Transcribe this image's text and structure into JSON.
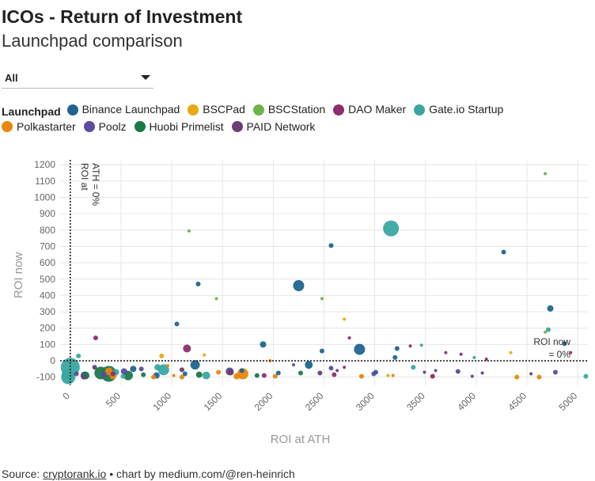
{
  "header": {
    "title": "ICOs - Return of Investment",
    "subtitle": "Launchpad comparison"
  },
  "filter": {
    "selected": "All"
  },
  "legend": {
    "title": "Launchpad",
    "items": [
      {
        "label": "Binance Launchpad",
        "color": "#1f6590"
      },
      {
        "label": "BSCPad",
        "color": "#e8a911"
      },
      {
        "label": "BSCStation",
        "color": "#6db34a"
      },
      {
        "label": "DAO Maker",
        "color": "#8e2d6c"
      },
      {
        "label": "Gate.io Startup",
        "color": "#3aa6a1"
      },
      {
        "label": "Polkastarter",
        "color": "#e8860e"
      },
      {
        "label": "Poolz",
        "color": "#5c4ba0"
      },
      {
        "label": "Huobi Primelist",
        "color": "#1a7a4a"
      },
      {
        "label": "PAID Network",
        "color": "#6b3d76"
      }
    ]
  },
  "footer": {
    "source_label": "Source:",
    "source_link": "cryptorank.io",
    "credit": "• chart by medium.com/@ren-heinrich"
  },
  "chart_data": {
    "type": "scatter",
    "title": "",
    "xlabel": "ROI at ATH",
    "ylabel": "ROI now",
    "xlim": [
      -100,
      5100
    ],
    "ylim": [
      -150,
      1230
    ],
    "xticks": [
      0,
      500,
      1000,
      1500,
      2000,
      2500,
      3000,
      3500,
      4000,
      4500,
      5000
    ],
    "yticks": [
      -100,
      0,
      100,
      200,
      300,
      400,
      500,
      600,
      700,
      800,
      900,
      1000,
      1100,
      1200
    ],
    "reference_lines": [
      {
        "axis": "x",
        "value": 0,
        "label": "ROI at ATH = 0%"
      },
      {
        "axis": "y",
        "value": 0,
        "label": "ROI now = 0%"
      }
    ],
    "series": [
      {
        "name": "Binance Launchpad",
        "color": "#1f6590",
        "points": [
          [
            2250,
            460,
            7
          ],
          [
            2570,
            705,
            3
          ],
          [
            4270,
            665,
            3
          ],
          [
            4730,
            320,
            4
          ],
          [
            2850,
            70,
            7
          ],
          [
            1260,
            470,
            3
          ],
          [
            1050,
            225,
            3
          ],
          [
            1900,
            100,
            4
          ],
          [
            4870,
            105,
            3
          ],
          [
            2350,
            -25,
            5
          ],
          [
            1230,
            -25,
            6
          ],
          [
            3220,
            75,
            3
          ],
          [
            3200,
            20,
            3
          ],
          [
            850,
            -90,
            4
          ],
          [
            1130,
            -80,
            3
          ],
          [
            2050,
            -75,
            3
          ],
          [
            3010,
            -70,
            3
          ],
          [
            620,
            -50,
            4
          ],
          [
            2480,
            60,
            3
          ],
          [
            1690,
            -60,
            3
          ]
        ]
      },
      {
        "name": "BSCPad",
        "color": "#e8a911",
        "points": [
          [
            2700,
            255,
            2
          ],
          [
            900,
            30,
            3
          ],
          [
            4340,
            50,
            2
          ],
          [
            3130,
            -90,
            2
          ],
          [
            1320,
            35,
            2
          ]
        ]
      },
      {
        "name": "BSCStation",
        "color": "#6db34a",
        "points": [
          [
            1170,
            795,
            2
          ],
          [
            4680,
            1145,
            2
          ],
          [
            1440,
            380,
            2
          ],
          [
            2480,
            380,
            2
          ],
          [
            4680,
            175,
            2
          ]
        ]
      },
      {
        "name": "DAO Maker",
        "color": "#8e2d6c",
        "points": [
          [
            1150,
            75,
            5
          ],
          [
            250,
            140,
            3
          ],
          [
            2750,
            140,
            2
          ],
          [
            3350,
            90,
            2
          ],
          [
            3570,
            -95,
            3
          ],
          [
            2700,
            -40,
            2
          ],
          [
            1910,
            -90,
            3
          ],
          [
            3850,
            40,
            2
          ],
          [
            4930,
            50,
            2
          ],
          [
            4100,
            10,
            2
          ],
          [
            420,
            -80,
            3
          ],
          [
            2600,
            -85,
            3
          ],
          [
            3700,
            50,
            2
          ]
        ]
      },
      {
        "name": "Gate.io Startup",
        "color": "#3aa6a1",
        "points": [
          [
            3160,
            810,
            10
          ],
          [
            0,
            -40,
            12
          ],
          [
            -20,
            -100,
            9
          ],
          [
            -30,
            -85,
            7
          ],
          [
            4710,
            190,
            3
          ],
          [
            1340,
            -90,
            5
          ],
          [
            450,
            -70,
            4
          ],
          [
            860,
            -40,
            4
          ],
          [
            920,
            -55,
            7
          ],
          [
            3460,
            95,
            2
          ],
          [
            3380,
            -40,
            3
          ],
          [
            3980,
            20,
            2
          ],
          [
            80,
            30,
            3
          ],
          [
            5080,
            -95,
            3
          ],
          [
            520,
            -95,
            3
          ]
        ]
      },
      {
        "name": "Polkastarter",
        "color": "#e8860e",
        "points": [
          [
            1700,
            -80,
            7
          ],
          [
            380,
            -65,
            5
          ],
          [
            420,
            -95,
            4
          ],
          [
            820,
            -100,
            3
          ],
          [
            1640,
            -95,
            4
          ],
          [
            2020,
            -95,
            3
          ],
          [
            2870,
            -95,
            3
          ],
          [
            3180,
            -90,
            2
          ],
          [
            4400,
            -100,
            3
          ],
          [
            4620,
            -100,
            3
          ],
          [
            1100,
            -100,
            3
          ],
          [
            1460,
            -70,
            3
          ],
          [
            1970,
            0,
            2
          ],
          [
            960,
            -30,
            2
          ],
          [
            1020,
            -90,
            2
          ]
        ]
      },
      {
        "name": "Poolz",
        "color": "#5c4ba0",
        "points": [
          [
            330,
            -85,
            4
          ],
          [
            530,
            -65,
            4
          ],
          [
            140,
            -90,
            5
          ],
          [
            60,
            -80,
            3
          ],
          [
            1570,
            -65,
            5
          ],
          [
            2570,
            -45,
            3
          ],
          [
            2990,
            -80,
            3
          ],
          [
            3820,
            -65,
            3
          ],
          [
            4780,
            -70,
            3
          ],
          [
            700,
            -50,
            3
          ],
          [
            2200,
            -25,
            2
          ],
          [
            3600,
            -60,
            2
          ]
        ]
      },
      {
        "name": "Huobi Primelist",
        "color": "#1a7a4a",
        "points": [
          [
            380,
            -80,
            10
          ],
          [
            300,
            -75,
            8
          ],
          [
            570,
            -90,
            6
          ],
          [
            1270,
            -85,
            4
          ],
          [
            150,
            -90,
            5
          ],
          [
            720,
            -85,
            3
          ],
          [
            2270,
            -75,
            3
          ],
          [
            1840,
            -90,
            3
          ]
        ]
      },
      {
        "name": "PAID Network",
        "color": "#6b3d76",
        "points": [
          [
            1580,
            -70,
            4
          ],
          [
            240,
            -40,
            3
          ],
          [
            130,
            -100,
            3
          ],
          [
            2460,
            -75,
            3
          ],
          [
            1100,
            -55,
            3
          ],
          [
            3490,
            -70,
            2
          ],
          [
            2630,
            -60,
            2
          ],
          [
            4060,
            -75,
            2
          ],
          [
            4540,
            -80,
            2
          ],
          [
            3960,
            -95,
            2
          ]
        ]
      }
    ]
  }
}
